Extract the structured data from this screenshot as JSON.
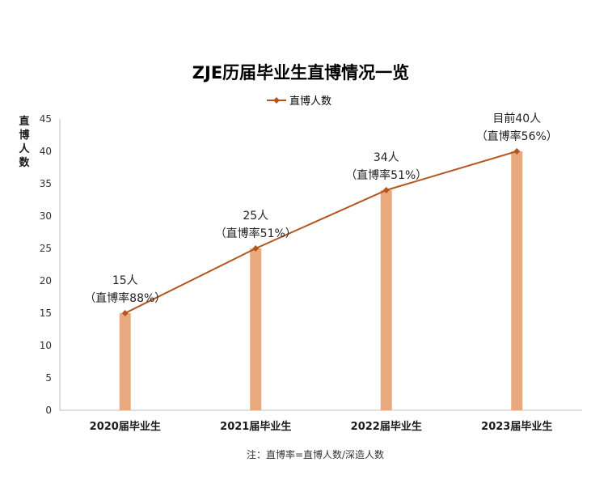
{
  "chart_data": {
    "type": "bar",
    "title": "ZJE历届毕业生直博情况一览",
    "ylabel": "直博人数",
    "ylim": [
      0,
      45
    ],
    "yticks": [
      0,
      5,
      10,
      15,
      20,
      25,
      30,
      35,
      40,
      45
    ],
    "categories": [
      "2020届毕业生",
      "2021届毕业生",
      "2022届毕业生",
      "2023届毕业生"
    ],
    "series": [
      {
        "name": "直博人数",
        "type": "bar",
        "values": [
          15,
          25,
          34,
          40
        ]
      },
      {
        "name": "直博人数",
        "type": "line",
        "values": [
          15,
          25,
          34,
          40
        ]
      }
    ],
    "legend": {
      "placement": "top-center",
      "entries": [
        "直博人数"
      ]
    },
    "data_labels": [
      {
        "line1": "15人",
        "line2": "（直博率88%）"
      },
      {
        "line1": "25人",
        "line2": "（直博率51%）"
      },
      {
        "line1": "34人",
        "line2": "（直博率51%）"
      },
      {
        "line1": "目前40人",
        "line2": "（直博率56%）"
      }
    ],
    "note": "注：直博率=直博人数/深造人数",
    "grid": false,
    "colors": {
      "bar": "#E8A97E",
      "line": "#B5551E",
      "axis": "#bfbfbf"
    }
  }
}
